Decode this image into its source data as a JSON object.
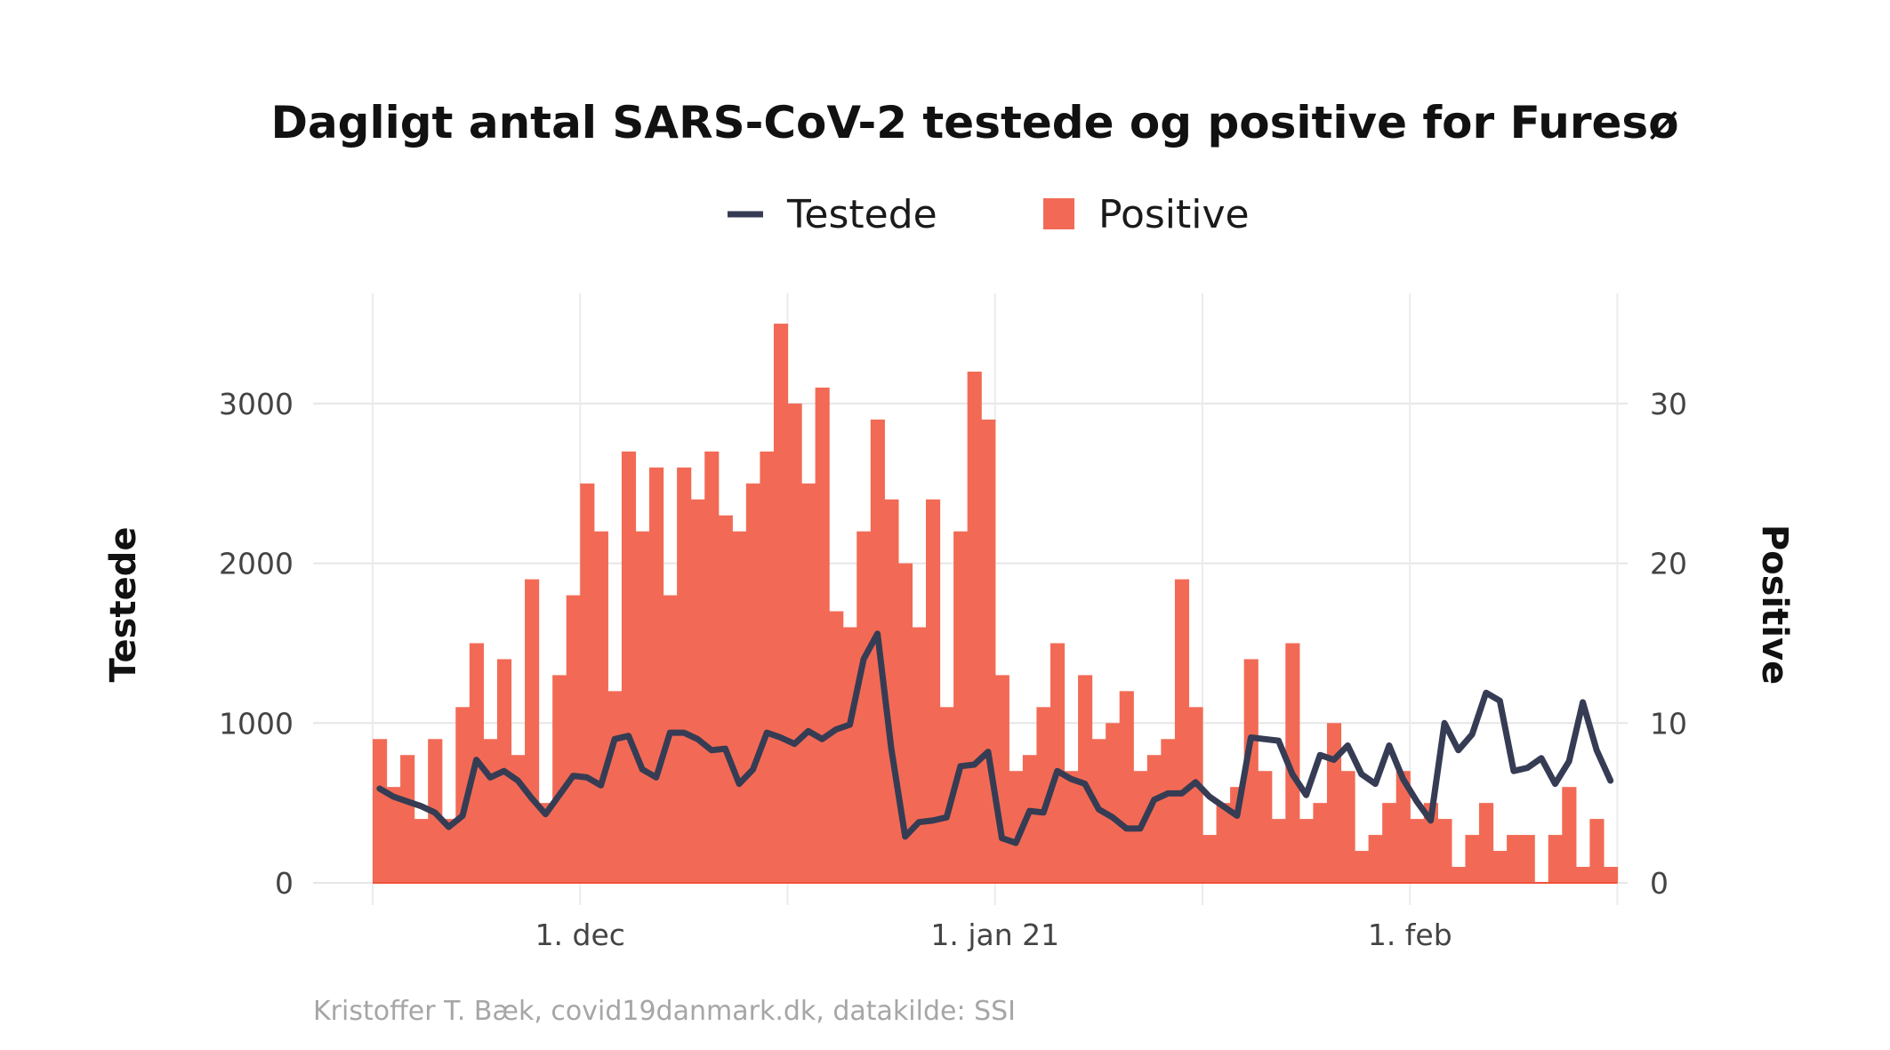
{
  "chart_data": {
    "type": "bar+line",
    "title": "Dagligt antal SARS-CoV-2 testede og positive for Furesø",
    "caption": "Kristoffer T. Bæk, covid19danmark.dk, datakilde: SSI",
    "legend": {
      "position": "top",
      "items": [
        {
          "label": "Testede",
          "kind": "line",
          "color": "#363c54"
        },
        {
          "label": "Positive",
          "kind": "bar",
          "color": "#f26a55"
        }
      ]
    },
    "y_left": {
      "label": "Testede",
      "range": [
        0,
        3600
      ],
      "ticks": [
        "0",
        "1000",
        "2000",
        "3000"
      ]
    },
    "y_right": {
      "label": "Positive",
      "range": [
        0,
        36
      ],
      "ticks": [
        "0",
        "10",
        "20",
        "30"
      ]
    },
    "x_axis": {
      "range_days": [
        0,
        90
      ],
      "tick_days": [
        15,
        45,
        75
      ],
      "tick_labels": [
        "1. dec",
        "1. jan 21",
        "1. feb"
      ],
      "minor_tick_days": [
        0,
        30,
        60,
        90
      ]
    },
    "positive": [
      9,
      6,
      8,
      4,
      9,
      4,
      11,
      15,
      9,
      14,
      8,
      19,
      5,
      13,
      18,
      25,
      22,
      12,
      27,
      22,
      26,
      18,
      26,
      24,
      27,
      23,
      22,
      25,
      27,
      35,
      30,
      25,
      31,
      17,
      16,
      22,
      29,
      24,
      20,
      16,
      24,
      11,
      22,
      32,
      29,
      13,
      7,
      8,
      11,
      15,
      7,
      13,
      9,
      10,
      12,
      7,
      8,
      9,
      19,
      11,
      3,
      5,
      6,
      14,
      7,
      4,
      15,
      4,
      5,
      10,
      7,
      2,
      3,
      5,
      7,
      4,
      5,
      4,
      1,
      3,
      5,
      2,
      3,
      3,
      0,
      3,
      6,
      1,
      4,
      1
    ],
    "testede": [
      590,
      540,
      510,
      480,
      440,
      350,
      420,
      770,
      660,
      700,
      640,
      530,
      430,
      550,
      670,
      660,
      610,
      900,
      920,
      710,
      660,
      940,
      940,
      900,
      830,
      840,
      620,
      710,
      940,
      910,
      870,
      950,
      900,
      960,
      990,
      1400,
      1560,
      840,
      290,
      380,
      390,
      410,
      730,
      740,
      820,
      280,
      250,
      450,
      440,
      700,
      650,
      620,
      460,
      410,
      340,
      340,
      520,
      560,
      560,
      630,
      540,
      480,
      420,
      910,
      900,
      890,
      680,
      550,
      800,
      770,
      860,
      680,
      620,
      860,
      650,
      510,
      390,
      1000,
      830,
      930,
      1190,
      1140,
      700,
      720,
      780,
      620,
      760,
      1130,
      830,
      640
    ]
  }
}
